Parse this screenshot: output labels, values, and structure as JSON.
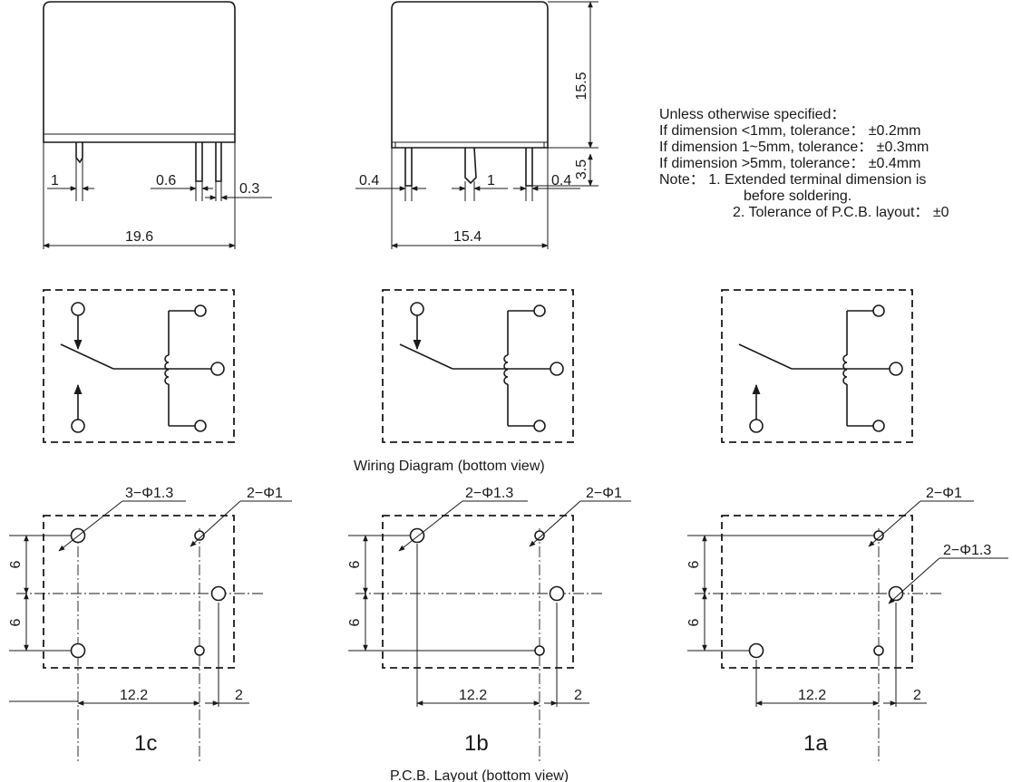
{
  "front_view": {
    "dim_pin_width": "1",
    "dim_pin_thickness": "0.6",
    "dim_pin_gap": "0.3",
    "dim_length": "19.6"
  },
  "side_view": {
    "dim_offset_left": "0.4",
    "dim_middle_pin": "1",
    "dim_offset_right": "0.4",
    "dim_width": "15.4",
    "dim_height": "15.5",
    "dim_pin_length": "3.5"
  },
  "notes": {
    "title": "Unless otherwise specified：",
    "line1": "If dimension  <1mm, tolerance：  ±0.2mm",
    "line2": "If dimension 1~5mm, tolerance：  ±0.3mm",
    "line3": "If dimension  >5mm, tolerance：  ±0.4mm",
    "line4": "Note：  1. Extended terminal dimension is",
    "line5": "before soldering.",
    "line6": "2. Tolerance of P.C.B. layout：  ±0"
  },
  "wiring_caption": "Wiring Diagram (bottom view)",
  "pcb_caption": "P.C.B. Layout (bottom view)",
  "layouts": [
    {
      "label": "1c",
      "big_hole": "3−Φ1.3",
      "small_hole": "2−Φ1",
      "spacing_top": "6",
      "spacing_bottom": "6",
      "pitch": "12.2",
      "offset": "2"
    },
    {
      "label": "1b",
      "big_hole": "2−Φ1.3",
      "small_hole": "2−Φ1",
      "spacing_top": "6",
      "spacing_bottom": "6",
      "pitch": "12.2",
      "offset": "2"
    },
    {
      "label": "1a",
      "big_hole": "2−Φ1.3",
      "small_hole": "2−Φ1",
      "spacing_top": "6",
      "spacing_bottom": "6",
      "pitch": "12.2",
      "offset": "2"
    }
  ]
}
